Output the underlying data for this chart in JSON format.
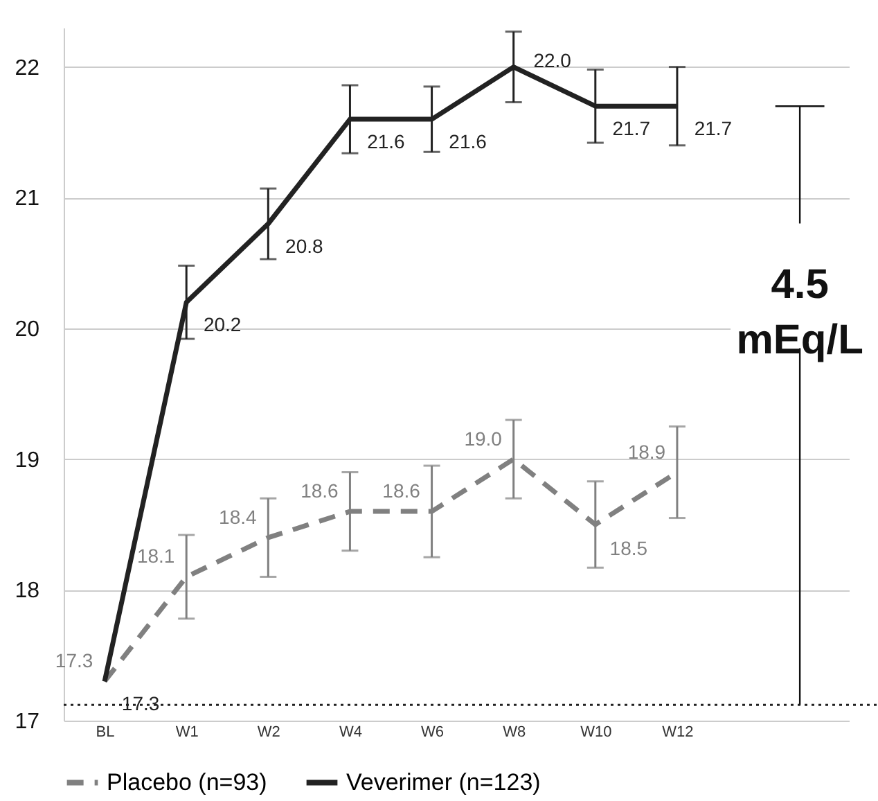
{
  "chart_data": {
    "type": "line",
    "categories": [
      "BL",
      "W1",
      "W2",
      "W4",
      "W6",
      "W8",
      "W10",
      "W12"
    ],
    "series": [
      {
        "name": "Placebo (n=93)",
        "color": "#808080",
        "line_style": "dashed",
        "values": [
          17.3,
          18.1,
          18.4,
          18.6,
          18.6,
          19.0,
          18.5,
          18.9
        ],
        "errors": [
          null,
          0.32,
          0.3,
          0.3,
          0.35,
          0.3,
          0.33,
          0.35
        ],
        "value_labels": [
          "17.3",
          "18.1",
          "18.4",
          "18.6",
          "18.6",
          "19.0",
          "18.5",
          "18.9"
        ]
      },
      {
        "name": "Veverimer (n=123)",
        "color": "#222222",
        "line_style": "solid",
        "values": [
          17.3,
          20.2,
          20.8,
          21.6,
          21.6,
          22.0,
          21.7,
          21.7
        ],
        "errors": [
          null,
          0.28,
          0.27,
          0.26,
          0.25,
          0.27,
          0.28,
          0.3
        ],
        "value_labels": [
          "17.3",
          "20.2",
          "20.8",
          "21.6",
          "21.6",
          "22.0",
          "21.7",
          "21.7"
        ]
      }
    ],
    "ylim": [
      17,
      22.3
    ],
    "yticks": [
      17,
      18,
      19,
      20,
      21,
      22
    ],
    "grid": "y",
    "legend": "bottom",
    "marker": "none",
    "ref_lines": [
      {
        "axis": "y",
        "value": 17.12,
        "line_style": "dotted",
        "color": "#222222"
      }
    ],
    "annotations": [
      "4.5 mEq/L"
    ]
  }
}
